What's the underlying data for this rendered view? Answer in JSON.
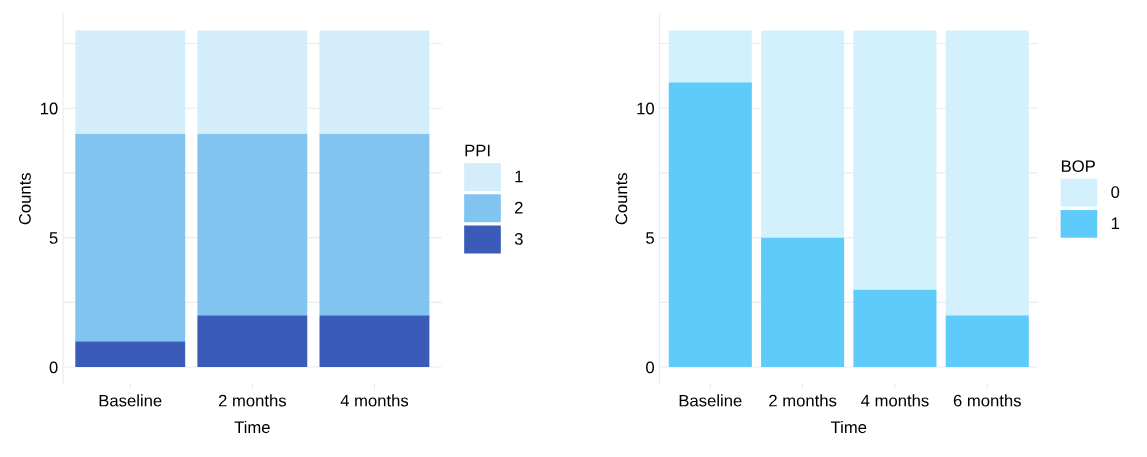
{
  "chart_data": [
    {
      "type": "bar",
      "stacked": true,
      "xlabel": "Time",
      "ylabel": "Counts",
      "legend_title": "PPI",
      "legend": "right",
      "grid": "y",
      "categories": [
        "Baseline",
        "2 months",
        "4 months"
      ],
      "series": [
        {
          "name": "3",
          "color": "#3a5cb8",
          "values": [
            1,
            2,
            2
          ]
        },
        {
          "name": "2",
          "color": "#80c4ef",
          "values": [
            8,
            7,
            7
          ]
        },
        {
          "name": "1",
          "color": "#d4edfb",
          "values": [
            4,
            4,
            4
          ]
        }
      ],
      "ylim": [
        -0.65,
        13.65
      ],
      "yticks": [
        0,
        {
          "value": 2.5,
          "label": null
        },
        5,
        {
          "value": 7.5,
          "label": null
        },
        10,
        {
          "value": 12.5,
          "label": null
        }
      ]
    },
    {
      "type": "bar",
      "stacked": true,
      "xlabel": "Time",
      "ylabel": "Counts",
      "legend_title": "BOP",
      "legend": "right",
      "grid": "y",
      "categories": [
        "Baseline",
        "2 months",
        "4 months",
        "6 months"
      ],
      "series": [
        {
          "name": "1",
          "color": "#5ecbfb",
          "values": [
            11,
            5,
            3,
            2
          ]
        },
        {
          "name": "0",
          "color": "#d3f1fd",
          "values": [
            2,
            8,
            10,
            11
          ]
        }
      ],
      "ylim": [
        -0.65,
        13.65
      ],
      "yticks": [
        0,
        {
          "value": 2.5,
          "label": null
        },
        5,
        {
          "value": 7.5,
          "label": null
        },
        10,
        {
          "value": 12.5,
          "label": null
        }
      ]
    }
  ]
}
